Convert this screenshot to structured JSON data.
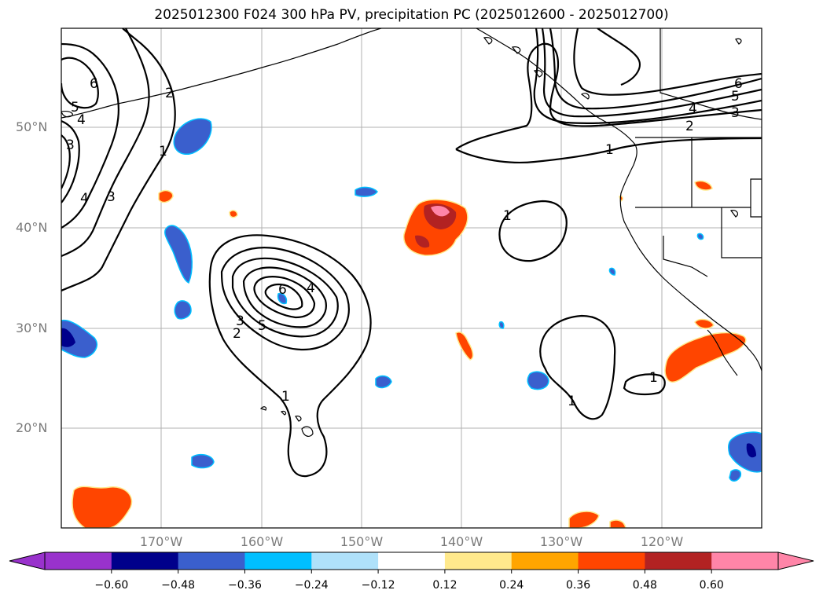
{
  "title": "2025012300 F024 300 hPa PV, precipitation PC (2025012600 - 2025012700)",
  "lat_labels": [
    "50°N",
    "40°N",
    "30°N",
    "20°N"
  ],
  "lon_labels": [
    "170°W",
    "160°W",
    "150°W",
    "140°W",
    "130°W",
    "120°W"
  ],
  "colorbar": {
    "ticks": [
      "−0.60",
      "−0.48",
      "−0.36",
      "−0.24",
      "−0.12",
      "0.12",
      "0.24",
      "0.36",
      "0.48",
      "0.60"
    ],
    "colors": [
      "#9932cc",
      "#00008b",
      "#3a5fcd",
      "#00bfff",
      "#afe1fa",
      "#ffffff",
      "#ffe98c",
      "#ffa500",
      "#ff4500",
      "#b22222",
      "#ff85a8"
    ]
  },
  "contour_labels": [
    "6",
    "5",
    "4",
    "3",
    "2",
    "1"
  ],
  "colors": {
    "negative_strong": "#00008b",
    "negative": "#3a5fcd",
    "positive": "#ff4500",
    "positive_strong": "#b22222",
    "highest": "#ff85a8",
    "grid": "#b0b0b0",
    "contour": "#000000"
  }
}
